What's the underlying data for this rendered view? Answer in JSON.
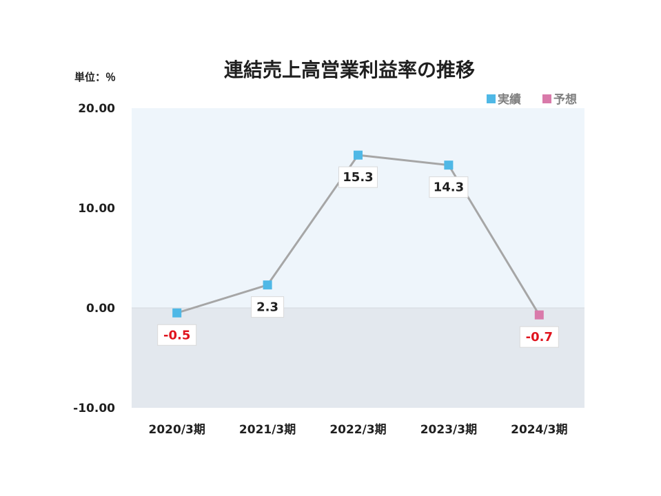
{
  "chart_data": {
    "type": "line",
    "title": "連結売上高営業利益率の推移",
    "unit_label": "単位：％",
    "categories": [
      "2020/3期",
      "2021/3期",
      "2022/3期",
      "2023/3期",
      "2024/3期"
    ],
    "series": [
      {
        "name": "実績",
        "color": "#4fb8e6",
        "points": [
          {
            "x": "2020/3期",
            "y": -0.5,
            "label": "-0.5"
          },
          {
            "x": "2021/3期",
            "y": 2.3,
            "label": "2.3"
          },
          {
            "x": "2022/3期",
            "y": 15.3,
            "label": "15.3"
          },
          {
            "x": "2023/3期",
            "y": 14.3,
            "label": "14.3"
          }
        ]
      },
      {
        "name": "予想",
        "color": "#d97aaa",
        "points": [
          {
            "x": "2024/3期",
            "y": -0.7,
            "label": "-0.7"
          }
        ]
      }
    ],
    "ylim": [
      -10,
      20
    ],
    "yticks": [
      "20.00",
      "10.00",
      "0.00",
      "-10.00"
    ],
    "ytick_values": [
      20,
      10,
      0,
      -10
    ],
    "line_color": "#a6a6a6",
    "positive_label_color": "#1f1f1f",
    "negative_label_color": "#e0141e",
    "positive_area_color": "#eef5fb",
    "negative_area_color": "#e3e8ee",
    "legend_position": "top-right"
  }
}
